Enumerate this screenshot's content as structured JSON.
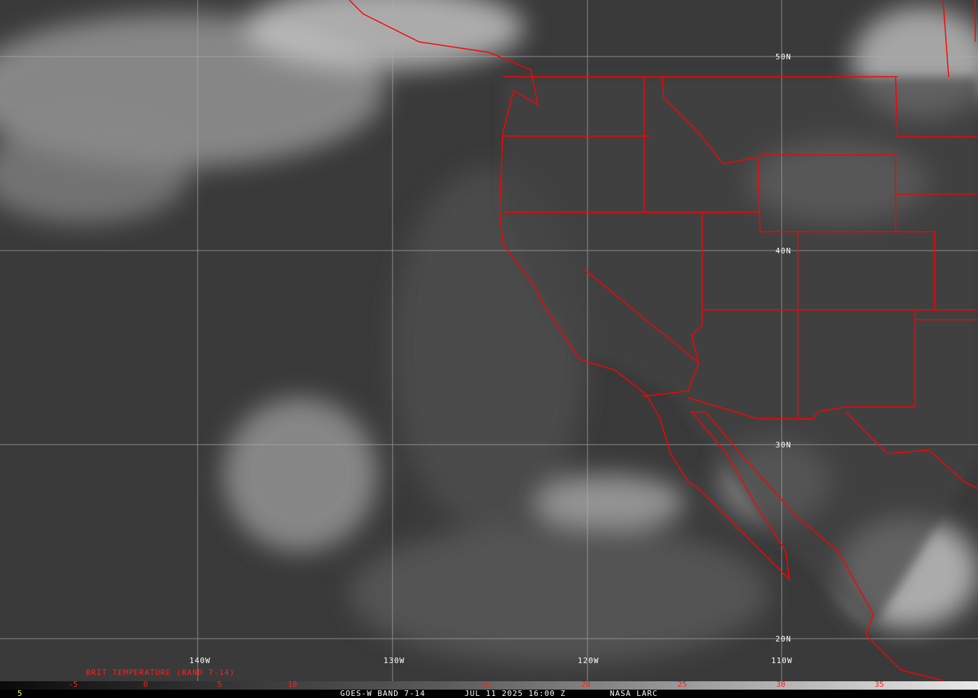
{
  "map": {
    "colors": {
      "boundary": "#ff0000",
      "grid": "#b0b0b0",
      "label": "#ffffff",
      "legend_text": "#ff2020",
      "footer_value": "#ffff40"
    },
    "longitude_labels": [
      "140W",
      "130W",
      "120W",
      "110W"
    ],
    "latitude_labels": [
      "50N",
      "40N",
      "30N",
      "20N"
    ],
    "legend_title": "BRIT TEMPERATURE (BAND 7-14)",
    "colorbar_ticks": [
      "-5",
      "0",
      "5",
      "10",
      "15",
      "20",
      "25",
      "30",
      "35"
    ],
    "footer": {
      "value": "5",
      "satellite": "GOES-W BAND 7-14",
      "datetime": "JUL 11 2025 16:00 Z",
      "source": "NASA LARC"
    }
  }
}
